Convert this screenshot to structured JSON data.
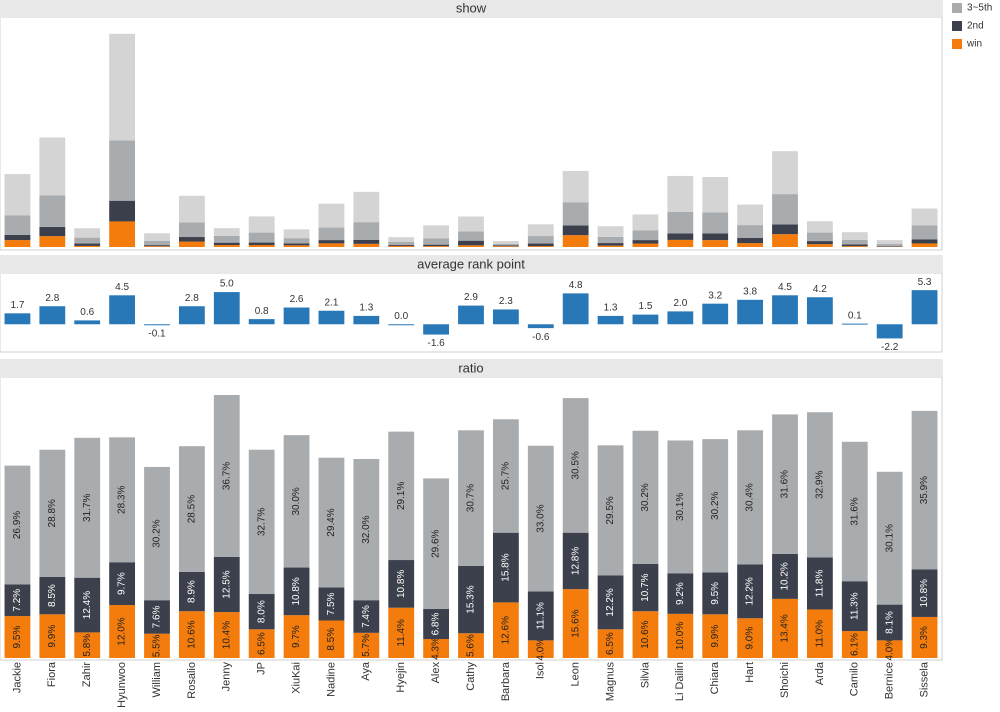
{
  "chart_data": [
    {
      "type": "bar",
      "title": "show",
      "stacked": true,
      "legend": "right",
      "ylim": [
        0,
        230
      ],
      "series": [
        {
          "name": "win",
          "color": "#f47c0c",
          "values": [
            7.0,
            11.0,
            1.1,
            25.9,
            0.8,
            5.5,
            2.0,
            2.0,
            1.7,
            3.7,
            3.2,
            1.1,
            0.9,
            1.7,
            0.8,
            0.9,
            12.0,
            1.4,
            3.5,
            7.2,
            7.0,
            3.9,
            13.0,
            2.9,
            0.9,
            0.3,
            3.6
          ]
        },
        {
          "name": "2nd",
          "color": "#3c3f4c",
          "values": [
            5.3,
            9.4,
            2.4,
            21.0,
            1.1,
            4.6,
            2.4,
            2.5,
            1.9,
            3.3,
            4.1,
            1.1,
            1.5,
            4.7,
            0.9,
            2.6,
            9.9,
            2.6,
            3.5,
            6.6,
            6.7,
            5.2,
            9.9,
            3.1,
            1.7,
            0.6,
            4.2
          ]
        },
        {
          "name": "3~5th",
          "color": "#a9acaf",
          "values": [
            19.9,
            32.0,
            6.0,
            61.1,
            4.2,
            14.8,
            7.0,
            10.1,
            5.4,
            12.9,
            17.9,
            2.9,
            6.5,
            9.5,
            1.5,
            7.6,
            23.5,
            6.2,
            10.0,
            21.7,
            21.4,
            13.1,
            30.7,
            8.6,
            4.7,
            2.1,
            14.0
          ]
        },
        {
          "color": "#d4d4d4",
          "values": [
            41.7,
            58.6,
            9.5,
            108.0,
            7.9,
            27.0,
            7.7,
            16.4,
            8.9,
            24.0,
            30.7,
            4.9,
            13.0,
            15.0,
            2.8,
            11.9,
            31.6,
            10.9,
            16.0,
            36.5,
            35.8,
            20.8,
            43.5,
            11.5,
            7.7,
            4.0,
            17.2
          ]
        }
      ]
    },
    {
      "type": "bar",
      "title": "average rank point",
      "color": "#2878b8",
      "ylim": [
        -4,
        7.5
      ],
      "values": [
        1.7,
        2.8,
        0.6,
        4.5,
        -0.1,
        2.8,
        5.0,
        0.8,
        2.6,
        2.1,
        1.3,
        0.0,
        -1.6,
        2.9,
        2.3,
        -0.6,
        4.8,
        1.3,
        1.5,
        2.0,
        3.2,
        3.8,
        4.5,
        4.2,
        0.1,
        -2.2,
        5.3
      ],
      "value_labels": [
        "1.7",
        "2.8",
        "0.6",
        "4.5",
        "-0.1",
        "2.8",
        "5.0",
        "0.8",
        "2.6",
        "2.1",
        "1.3",
        "0.0",
        "-1.6",
        "2.9",
        "2.3",
        "-0.6",
        "4.8",
        "1.3",
        "1.5",
        "2.0",
        "3.2",
        "3.8",
        "4.5",
        "4.2",
        "0.1",
        "-2.2",
        "5.3"
      ]
    },
    {
      "type": "bar",
      "title": "ratio",
      "stacked": true,
      "ylim": [
        0,
        63
      ],
      "categories": [
        "Jackie",
        "Fiora",
        "Zahir",
        "Hyunwoo",
        "William",
        "Rosalio",
        "Jenny",
        "JP",
        "XiuKai",
        "Nadine",
        "Aya",
        "Hyejin",
        "Alex",
        "Cathy",
        "Barbara",
        "Isol",
        "Leon",
        "Magnus",
        "Silvia",
        "Li Dailin",
        "Chiara",
        "Hart",
        "Shoichi",
        "Arda",
        "Camilo",
        "Bernice",
        "Sissela"
      ],
      "series": [
        {
          "name": "win",
          "color": "#f47c0c",
          "values": [
            9.5,
            9.9,
            5.8,
            12.0,
            5.5,
            10.6,
            10.4,
            6.5,
            9.7,
            8.5,
            5.7,
            11.4,
            4.3,
            5.6,
            12.6,
            4.0,
            15.6,
            6.5,
            10.6,
            10.0,
            9.9,
            9.0,
            13.4,
            11.0,
            6.1,
            4.0,
            9.3
          ],
          "value_labels": [
            "9.5%",
            "9.9%",
            "5.8%",
            "12.0%",
            "5.5%",
            "10.6%",
            "10.4%",
            "6.5%",
            "9.7%",
            "8.5%",
            "5.7%",
            "11.4%",
            "4.3%",
            "5.6%",
            "12.6%",
            "4.0%",
            "15.6%",
            "6.5%",
            "10.6%",
            "10.0%",
            "9.9%",
            "9.0%",
            "13.4%",
            "11.0%",
            "6.1%",
            "4.0%",
            "9.3%"
          ]
        },
        {
          "name": "2nd",
          "color": "#3c3f4c",
          "values": [
            7.2,
            8.5,
            12.4,
            9.7,
            7.6,
            8.9,
            12.5,
            8.0,
            10.8,
            7.5,
            7.4,
            10.8,
            6.8,
            15.3,
            15.8,
            11.1,
            12.8,
            12.2,
            10.7,
            9.2,
            9.5,
            12.2,
            10.2,
            11.8,
            11.3,
            8.1,
            10.8
          ],
          "value_labels": [
            "7.2%",
            "8.5%",
            "12.4%",
            "9.7%",
            "7.6%",
            "8.9%",
            "12.5%",
            "8.0%",
            "10.8%",
            "7.5%",
            "7.4%",
            "10.8%",
            "6.8%",
            "15.3%",
            "15.8%",
            "11.1%",
            "12.8%",
            "12.2%",
            "10.7%",
            "9.2%",
            "9.5%",
            "12.2%",
            "10.2%",
            "11.8%",
            "11.3%",
            "8.1%",
            "10.8%"
          ]
        },
        {
          "name": "3~5th",
          "color": "#a9acaf",
          "values": [
            26.9,
            28.8,
            31.7,
            28.3,
            30.2,
            28.5,
            36.7,
            32.7,
            30.0,
            29.4,
            32.0,
            29.1,
            29.6,
            30.7,
            25.7,
            33.0,
            30.5,
            29.5,
            30.2,
            30.1,
            30.2,
            30.4,
            31.6,
            32.9,
            31.6,
            30.1,
            35.9
          ],
          "value_labels": [
            "26.9%",
            "28.8%",
            "31.7%",
            "28.3%",
            "30.2%",
            "28.5%",
            "36.7%",
            "32.7%",
            "30.0%",
            "29.4%",
            "32.0%",
            "29.1%",
            "29.6%",
            "30.7%",
            "25.7%",
            "33.0%",
            "30.5%",
            "29.5%",
            "30.2%",
            "30.1%",
            "30.2%",
            "30.4%",
            "31.6%",
            "32.9%",
            "31.6%",
            "30.1%",
            "35.9%"
          ]
        }
      ]
    }
  ]
}
